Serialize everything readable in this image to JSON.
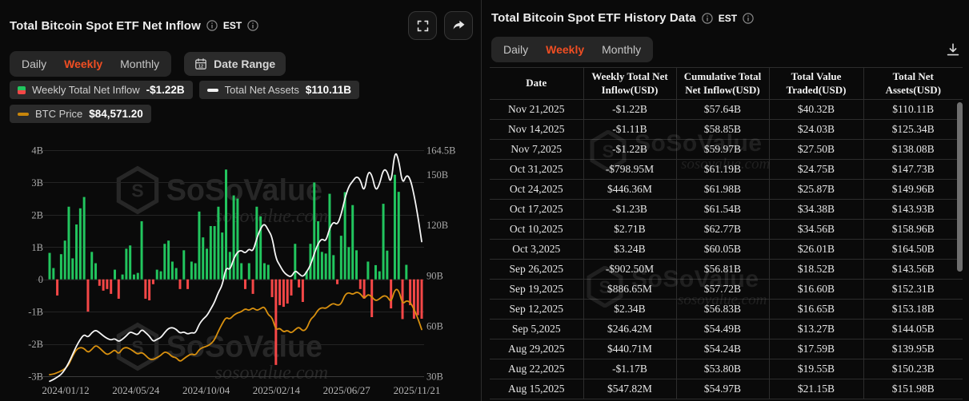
{
  "left_panel": {
    "title": "Total Bitcoin Spot ETF Net Inflow",
    "timezone": "EST",
    "tabs": [
      "Daily",
      "Weekly",
      "Monthly"
    ],
    "active_tab": "Weekly",
    "date_range_label": "Date Range",
    "legend": [
      {
        "label": "Weekly Total Net Inflow",
        "value": "-$1.22B"
      },
      {
        "label": "Total Net Assets",
        "value": "$110.11B"
      },
      {
        "label": "BTC Price",
        "value": "$84,571.20"
      }
    ]
  },
  "chart_data": {
    "type": "bar",
    "title": "Total Bitcoin Spot ETF Net Inflow (Weekly)",
    "x_tick_labels": [
      "2024/01/12",
      "2024/05/24",
      "2024/10/04",
      "2025/02/14",
      "2025/06/27",
      "2025/11/21"
    ],
    "x_tick_indices": [
      0,
      19,
      38,
      57,
      76,
      97
    ],
    "left_axis": {
      "ticks": [
        "4B",
        "3B",
        "2B",
        "1B",
        "0",
        "-1B",
        "-2B",
        "-3B"
      ],
      "values": [
        4,
        3,
        2,
        1,
        0,
        -1,
        -2,
        -3
      ],
      "min": -3,
      "max": 4,
      "unit": "USD"
    },
    "right_axis": {
      "ticks": [
        "164.5B",
        "150B",
        "120B",
        "90B",
        "60B",
        "30B"
      ],
      "values": [
        164.5,
        150,
        120,
        90,
        60,
        30
      ],
      "min": 30,
      "max": 164.5,
      "unit": "USD"
    },
    "grid": true,
    "legend_position": "top-left",
    "series": [
      {
        "name": "Weekly Total Net Inflow",
        "type": "bar",
        "unit": "USD billions",
        "values": [
          0.82,
          0.35,
          -0.5,
          0.78,
          1.2,
          2.25,
          0.65,
          1.7,
          2.2,
          2.55,
          -1.0,
          0.85,
          0.5,
          -0.2,
          -0.35,
          -0.3,
          -0.45,
          0.3,
          -0.6,
          0.15,
          0.95,
          1.05,
          0.15,
          0.2,
          1.8,
          -0.6,
          -0.65,
          -0.15,
          0.3,
          0.25,
          1.1,
          1.2,
          0.55,
          0.35,
          -0.3,
          0.9,
          -0.3,
          0.55,
          0.5,
          2.1,
          1.3,
          0.95,
          1.65,
          1.65,
          2.25,
          1.45,
          3.4,
          0.85,
          2.6,
          2.5,
          0.5,
          -0.3,
          0.5,
          -0.45,
          2.25,
          1.95,
          0.5,
          0.45,
          -0.55,
          -2.65,
          -0.8,
          -0.85,
          -0.75,
          -0.5,
          1.1,
          -0.25,
          -0.7,
          0.25,
          1.1,
          3.0,
          1.8,
          0.85,
          0.8,
          2.65,
          0.75,
          -0.15,
          1.35,
          2.7,
          1.0,
          2.3,
          0.9,
          -0.3,
          -0.6,
          0.55,
          -1.17,
          0.44,
          0.25,
          2.34,
          0.89,
          -0.9,
          3.24,
          2.71,
          -1.23,
          0.45,
          -0.8,
          -1.22,
          -1.11,
          -1.22
        ]
      },
      {
        "name": "Total Net Assets",
        "type": "line",
        "axis": "right",
        "unit": "USD billions",
        "values": [
          27,
          28,
          29.5,
          31,
          34,
          38,
          43,
          48,
          52,
          55,
          53,
          56,
          57.5,
          56,
          54,
          52.5,
          51.5,
          52.5,
          50.5,
          52,
          54,
          56.5,
          55.5,
          54.5,
          58,
          56,
          54,
          50.5,
          52,
          53,
          56,
          58.5,
          59,
          58,
          55.5,
          56.5,
          55,
          56,
          55.5,
          61,
          64,
          66,
          70,
          74,
          80,
          84,
          95,
          93,
          100,
          104,
          105,
          103,
          106,
          104,
          112,
          118,
          121,
          117,
          113,
          100,
          96,
          92,
          90,
          89,
          93,
          91,
          89,
          92,
          96,
          103,
          109,
          112,
          110,
          118,
          122,
          120,
          126,
          136,
          143,
          146,
          149,
          147,
          139,
          151.98,
          150.23,
          139.95,
          144.05,
          153.18,
          152.31,
          143.56,
          164.5,
          158.96,
          143.93,
          149.96,
          147.73,
          138.08,
          125.34,
          110.11
        ]
      },
      {
        "name": "BTC Price",
        "type": "line",
        "axis": "hidden",
        "unit": "USD thousands",
        "values": [
          42.6,
          43,
          44.5,
          46,
          48,
          52,
          60,
          66,
          68,
          67,
          63,
          66,
          70,
          67.5,
          64,
          61,
          63,
          66,
          61.5,
          67,
          68,
          66.5,
          64,
          61.5,
          63.5,
          60.5,
          57,
          56.5,
          58.5,
          60.5,
          64,
          62.5,
          59,
          58.5,
          54.5,
          57.5,
          60,
          62,
          60.5,
          66,
          68,
          69,
          71,
          75,
          83,
          90,
          96,
          94,
          98,
          100,
          101,
          104,
          102,
          105,
          102,
          104,
          106,
          98,
          96,
          84,
          86,
          82,
          84,
          81,
          84.5,
          87,
          83,
          85,
          94,
          97,
          103,
          105,
          104,
          107,
          109,
          107,
          108,
          117,
          119,
          117,
          119.5,
          118,
          113,
          117.5,
          115,
          111,
          113,
          116,
          115.5,
          109.5,
          122,
          121.5,
          108,
          111.5,
          110,
          103.5,
          95,
          84.57
        ]
      }
    ],
    "colors": {
      "positive": "#22C55E",
      "negative": "#F54747",
      "assets_line": "#F5F5F5",
      "btc_line": "#D8900F",
      "grid": "#242424",
      "tick_text": "#a8a8a8"
    }
  },
  "right_panel": {
    "title": "Total Bitcoin Spot ETF History Data",
    "timezone": "EST",
    "tabs": [
      "Daily",
      "Weekly",
      "Monthly"
    ],
    "active_tab": "Weekly",
    "table": {
      "columns": [
        "Date",
        "Weekly Total Net Inflow(USD)",
        "Cumulative Total Net Inflow(USD)",
        "Total Value Traded(USD)",
        "Total Net Assets(USD)"
      ],
      "rows": [
        {
          "date": "Nov 21,2025",
          "inflow": "-$1.22B",
          "inflow_positive": false,
          "cumulative": "$57.64B",
          "traded": "$40.32B",
          "assets": "$110.11B"
        },
        {
          "date": "Nov 14,2025",
          "inflow": "-$1.11B",
          "inflow_positive": false,
          "cumulative": "$58.85B",
          "traded": "$24.03B",
          "assets": "$125.34B"
        },
        {
          "date": "Nov 7,2025",
          "inflow": "-$1.22B",
          "inflow_positive": false,
          "cumulative": "$59.97B",
          "traded": "$27.50B",
          "assets": "$138.08B"
        },
        {
          "date": "Oct 31,2025",
          "inflow": "-$798.95M",
          "inflow_positive": false,
          "cumulative": "$61.19B",
          "traded": "$24.75B",
          "assets": "$147.73B"
        },
        {
          "date": "Oct 24,2025",
          "inflow": "$446.36M",
          "inflow_positive": true,
          "cumulative": "$61.98B",
          "traded": "$25.87B",
          "assets": "$149.96B"
        },
        {
          "date": "Oct 17,2025",
          "inflow": "-$1.23B",
          "inflow_positive": false,
          "cumulative": "$61.54B",
          "traded": "$34.38B",
          "assets": "$143.93B"
        },
        {
          "date": "Oct 10,2025",
          "inflow": "$2.71B",
          "inflow_positive": true,
          "cumulative": "$62.77B",
          "traded": "$34.56B",
          "assets": "$158.96B"
        },
        {
          "date": "Oct 3,2025",
          "inflow": "$3.24B",
          "inflow_positive": true,
          "cumulative": "$60.05B",
          "traded": "$26.01B",
          "assets": "$164.50B"
        },
        {
          "date": "Sep 26,2025",
          "inflow": "-$902.50M",
          "inflow_positive": false,
          "cumulative": "$56.81B",
          "traded": "$18.52B",
          "assets": "$143.56B"
        },
        {
          "date": "Sep 19,2025",
          "inflow": "$886.65M",
          "inflow_positive": true,
          "cumulative": "$57.72B",
          "traded": "$16.60B",
          "assets": "$152.31B"
        },
        {
          "date": "Sep 12,2025",
          "inflow": "$2.34B",
          "inflow_positive": true,
          "cumulative": "$56.83B",
          "traded": "$16.65B",
          "assets": "$153.18B"
        },
        {
          "date": "Sep 5,2025",
          "inflow": "$246.42M",
          "inflow_positive": true,
          "cumulative": "$54.49B",
          "traded": "$13.27B",
          "assets": "$144.05B"
        },
        {
          "date": "Aug 29,2025",
          "inflow": "$440.71M",
          "inflow_positive": true,
          "cumulative": "$54.24B",
          "traded": "$17.59B",
          "assets": "$139.95B"
        },
        {
          "date": "Aug 22,2025",
          "inflow": "-$1.17B",
          "inflow_positive": false,
          "cumulative": "$53.80B",
          "traded": "$19.55B",
          "assets": "$150.23B"
        },
        {
          "date": "Aug 15,2025",
          "inflow": "$547.82M",
          "inflow_positive": true,
          "cumulative": "$54.97B",
          "traded": "$21.15B",
          "assets": "$151.98B"
        }
      ]
    }
  },
  "watermark": {
    "brand": "SoSoValue",
    "domain": "sosovalue.com"
  }
}
